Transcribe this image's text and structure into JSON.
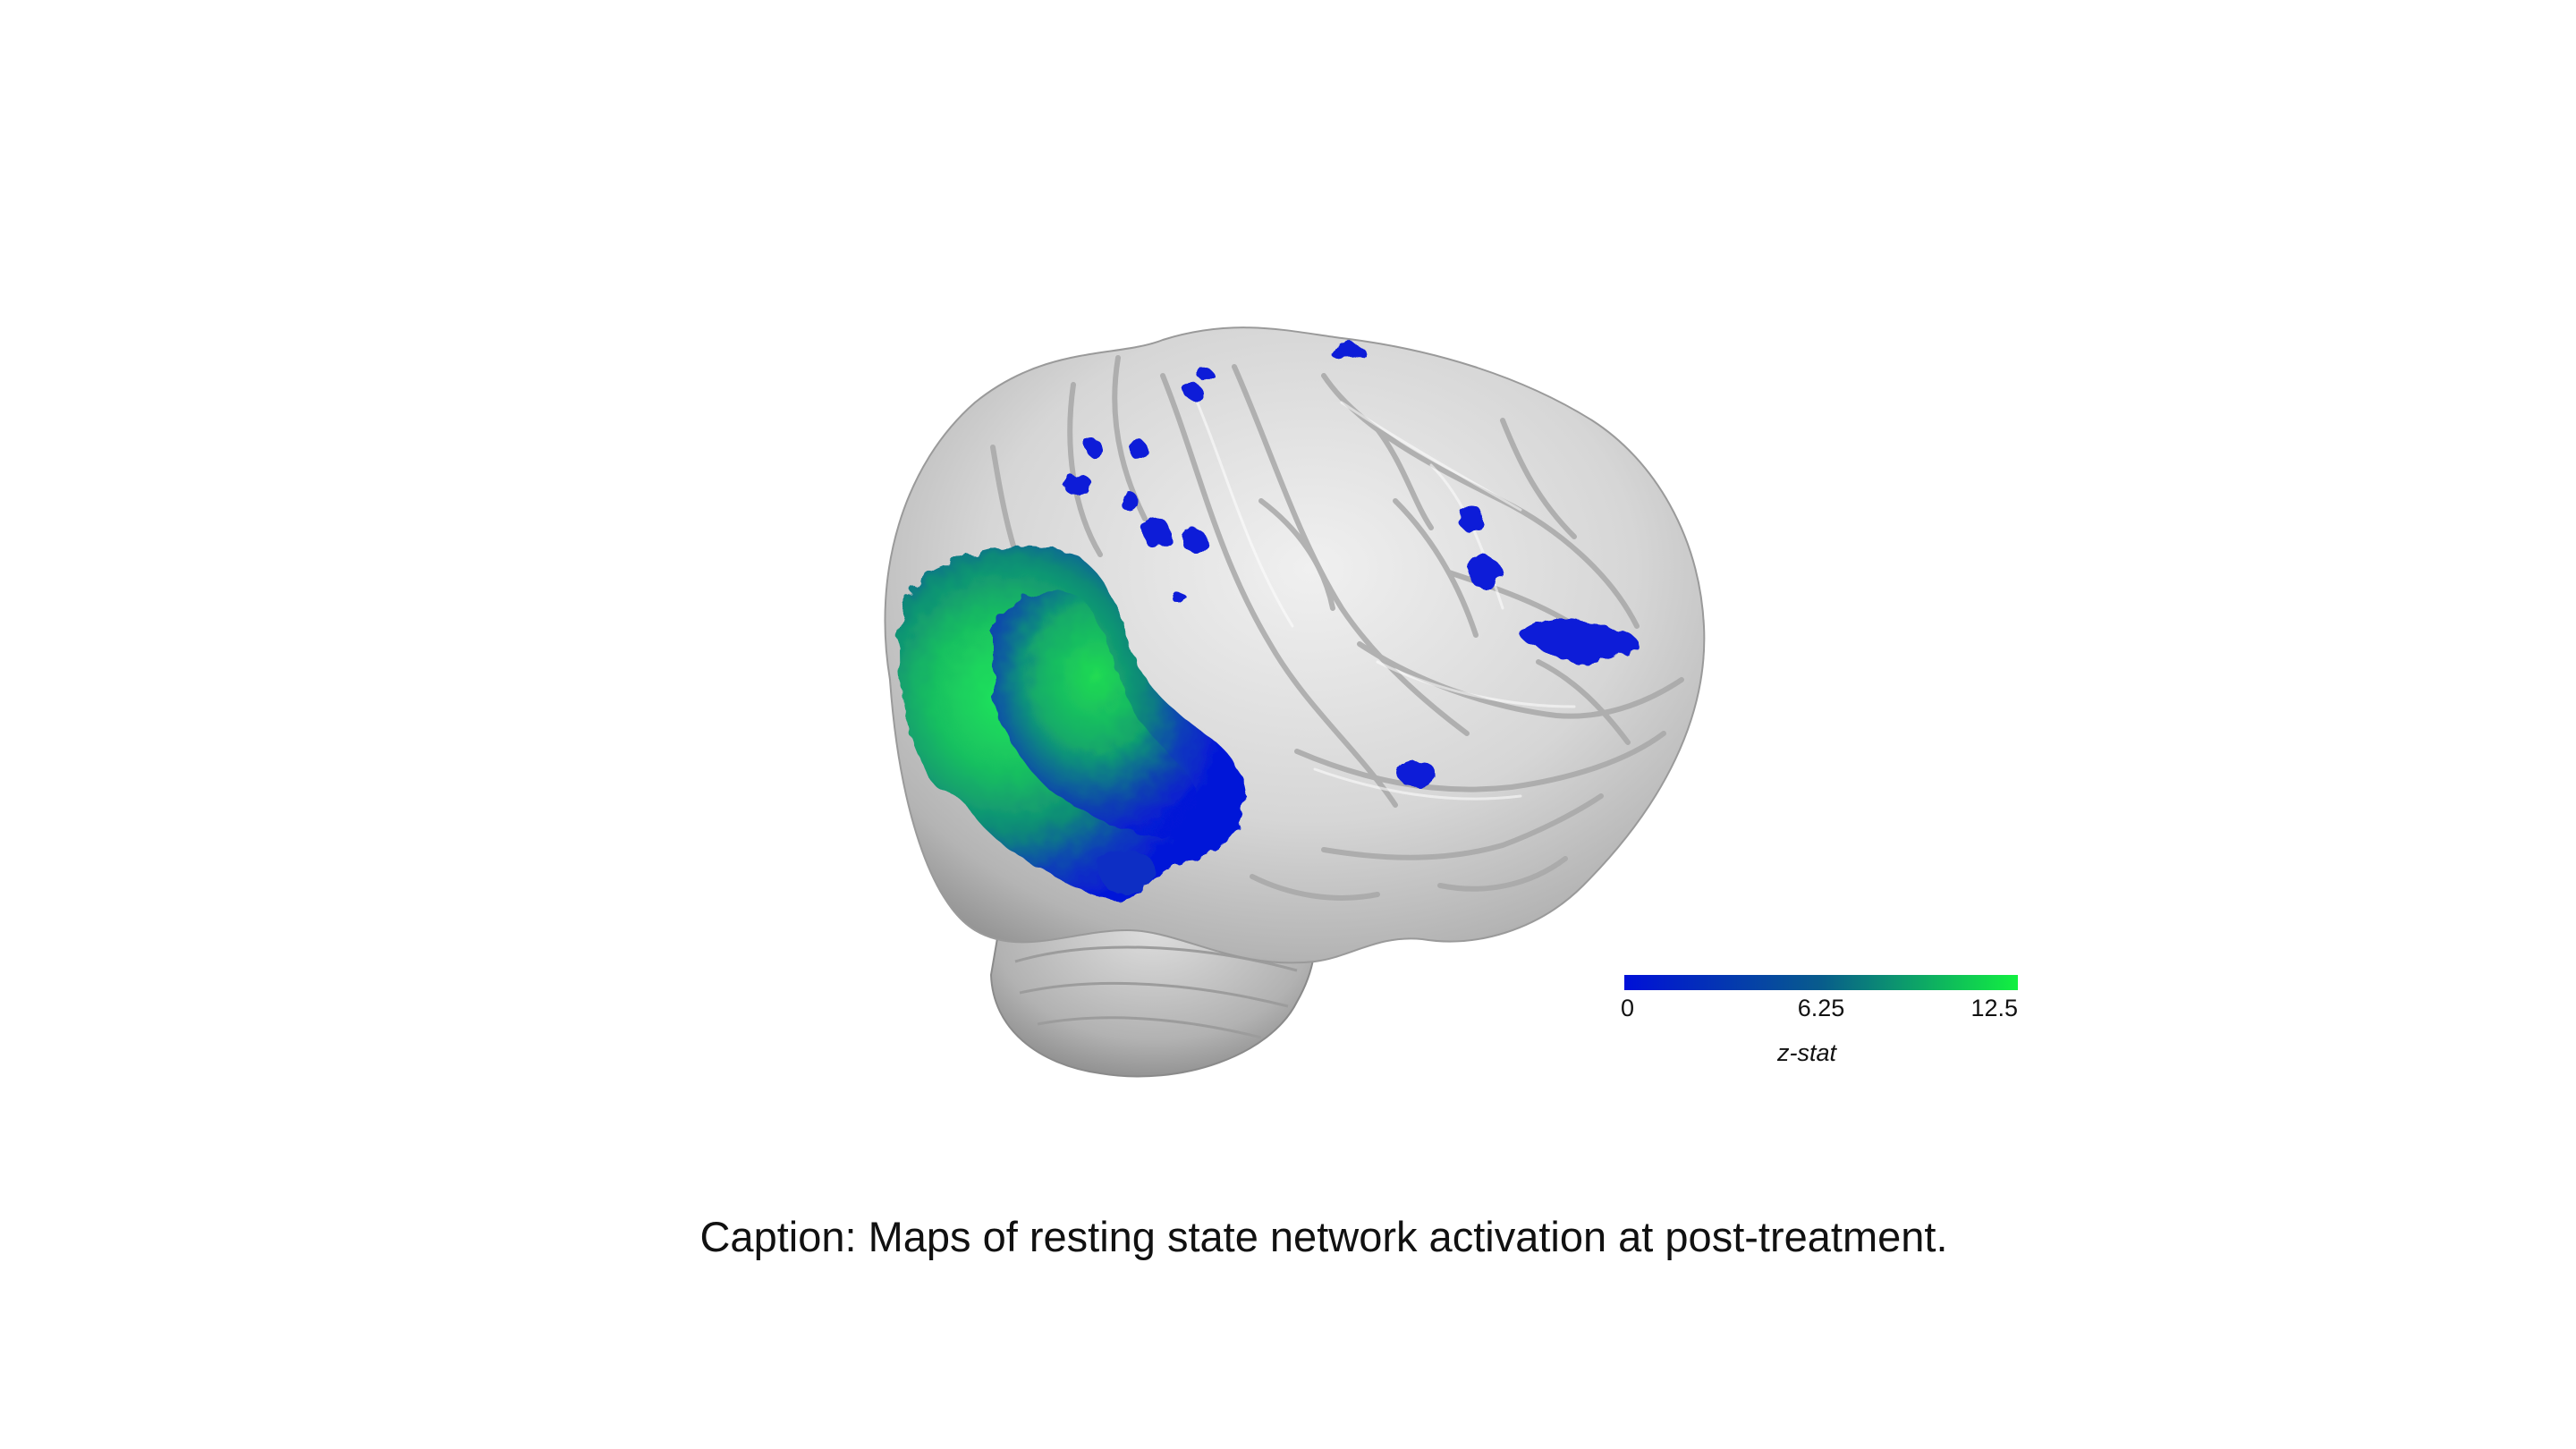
{
  "colorbar": {
    "label": "z-stat",
    "min_label": "0",
    "mid_label": "6.25",
    "max_label": "12.5",
    "min_color": "#0010d8",
    "mid_color": "#085c8c",
    "max_color": "#12f040"
  },
  "caption": "Caption: Maps of resting state network activation at post-treatment.",
  "colors": {
    "background": "#ffffff",
    "brain_surface": "#d8d8d8",
    "activation_low": "#0a1ad8",
    "activation_high": "#1de85a"
  }
}
